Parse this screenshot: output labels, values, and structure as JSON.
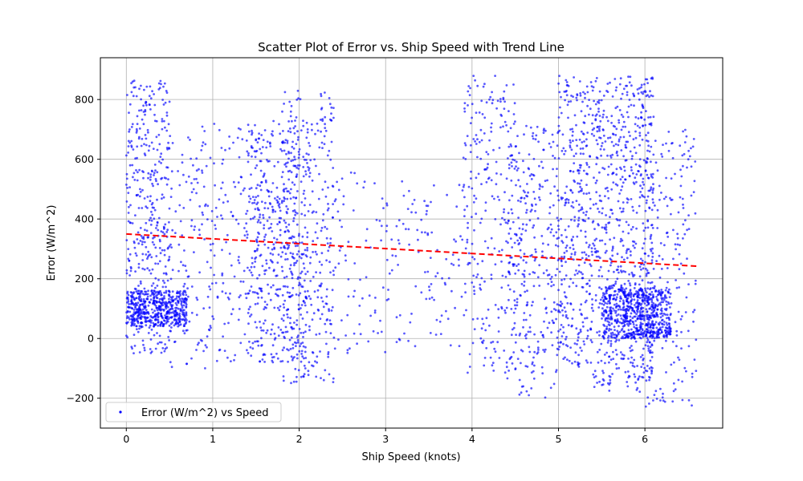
{
  "chart_data": {
    "type": "scatter",
    "title": "Scatter Plot of Error vs. Ship Speed with Trend Line",
    "xlabel": "Ship Speed (knots)",
    "ylabel": "Error (W/m^2)",
    "xlim": [
      -0.3,
      6.9
    ],
    "ylim": [
      -300,
      940
    ],
    "xticks": [
      0,
      1,
      2,
      3,
      4,
      5,
      6
    ],
    "yticks": [
      -200,
      0,
      200,
      400,
      600,
      800
    ],
    "grid": true,
    "legend": {
      "position": "lower-left",
      "entries": [
        "Error (W/m^2) vs Speed"
      ]
    },
    "colors": {
      "points": "#0000ff",
      "trend": "#ff0000"
    },
    "series": [
      {
        "name": "Error (W/m^2) vs Speed",
        "kind": "scatter",
        "clusters": [
          {
            "x": [
              0.0,
              0.5
            ],
            "y": [
              -50,
              870
            ],
            "weight": 1.6
          },
          {
            "x": [
              0.0,
              0.7
            ],
            "y": [
              40,
              160
            ],
            "weight": 1.8
          },
          {
            "x": [
              0.5,
              1.4
            ],
            "y": [
              -100,
              720
            ],
            "weight": 0.9
          },
          {
            "x": [
              1.4,
              2.1
            ],
            "y": [
              -80,
              730
            ],
            "weight": 1.8
          },
          {
            "x": [
              1.8,
              2.4
            ],
            "y": [
              -150,
              830
            ],
            "weight": 1.2
          },
          {
            "x": [
              2.4,
              3.2
            ],
            "y": [
              -50,
              560
            ],
            "weight": 0.35
          },
          {
            "x": [
              3.2,
              3.9
            ],
            "y": [
              -30,
              520
            ],
            "weight": 0.3
          },
          {
            "x": [
              3.9,
              4.5
            ],
            "y": [
              -130,
              880
            ],
            "weight": 0.9
          },
          {
            "x": [
              4.4,
              5.0
            ],
            "y": [
              -200,
              720
            ],
            "weight": 1.2
          },
          {
            "x": [
              5.0,
              5.4
            ],
            "y": [
              -100,
              880
            ],
            "weight": 1.3
          },
          {
            "x": [
              5.4,
              6.1
            ],
            "y": [
              -180,
              880
            ],
            "weight": 2.6
          },
          {
            "x": [
              5.5,
              6.3
            ],
            "y": [
              0,
              170
            ],
            "weight": 2.4
          },
          {
            "x": [
              6.0,
              6.6
            ],
            "y": [
              -230,
              700
            ],
            "weight": 0.8
          }
        ]
      },
      {
        "name": "Trend Line",
        "kind": "line",
        "style": "dashed",
        "x": [
          0.0,
          6.6
        ],
        "y": [
          350,
          242
        ]
      }
    ]
  }
}
